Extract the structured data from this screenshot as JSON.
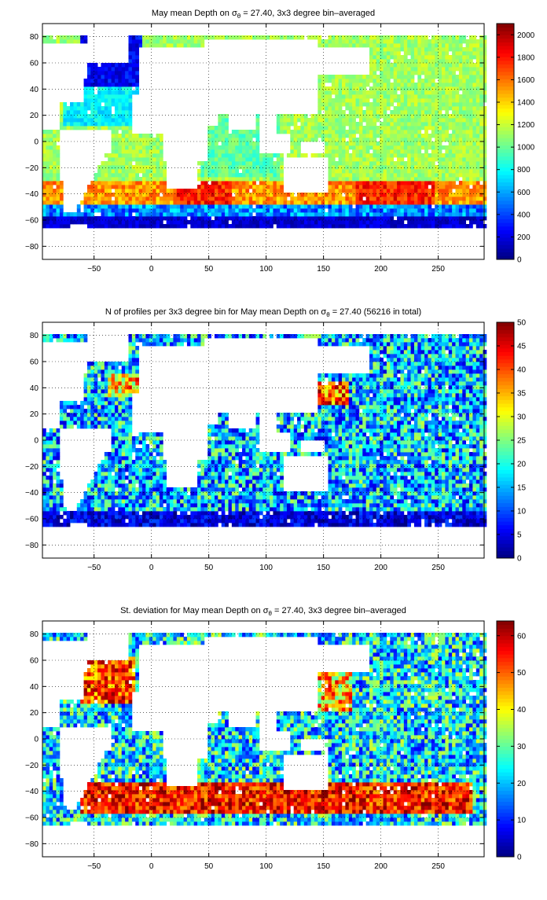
{
  "chart_data": [
    {
      "type": "heatmap",
      "title_prefix": "May mean Depth on ",
      "title_sym": "σ",
      "title_sub": "θ",
      "title_suffix": " = 27.40, 3x3 degree bin–averaged",
      "x_ticks": [
        -50,
        0,
        50,
        100,
        150,
        200,
        250
      ],
      "y_ticks": [
        -80,
        -60,
        -40,
        -20,
        0,
        20,
        40,
        60,
        80
      ],
      "xlim": [
        -95,
        290
      ],
      "ylim": [
        -90,
        90
      ],
      "grid": true,
      "colorbar": {
        "min": 0,
        "max": 2100,
        "ticks": [
          0,
          200,
          400,
          600,
          800,
          1000,
          1200,
          1400,
          1600,
          1800,
          2000
        ],
        "colormap": "jet"
      }
    },
    {
      "type": "heatmap",
      "title_prefix": "N of profiles per 3x3 degree bin for May mean Depth on ",
      "title_sym": "σ",
      "title_sub": "θ",
      "title_suffix": " = 27.40 (56216 in total)",
      "x_ticks": [
        -50,
        0,
        50,
        100,
        150,
        200,
        250
      ],
      "y_ticks": [
        -80,
        -60,
        -40,
        -20,
        0,
        20,
        40,
        60,
        80
      ],
      "xlim": [
        -95,
        290
      ],
      "ylim": [
        -90,
        90
      ],
      "grid": true,
      "colorbar": {
        "min": 0,
        "max": 50,
        "ticks": [
          0,
          5,
          10,
          15,
          20,
          25,
          30,
          35,
          40,
          45,
          50
        ],
        "colormap": "jet"
      }
    },
    {
      "type": "heatmap",
      "title_prefix": "St. deviation for May mean Depth on ",
      "title_sym": "σ",
      "title_sub": "θ",
      "title_suffix": " = 27.40, 3x3 degree bin–averaged",
      "x_ticks": [
        -50,
        0,
        50,
        100,
        150,
        200,
        250
      ],
      "y_ticks": [
        -80,
        -60,
        -40,
        -20,
        0,
        20,
        40,
        60,
        80
      ],
      "xlim": [
        -95,
        290
      ],
      "ylim": [
        -90,
        90
      ],
      "grid": true,
      "colorbar": {
        "min": 0,
        "max": 64,
        "ticks": [
          0,
          10,
          20,
          30,
          40,
          50,
          60
        ],
        "colormap": "jet"
      }
    }
  ]
}
